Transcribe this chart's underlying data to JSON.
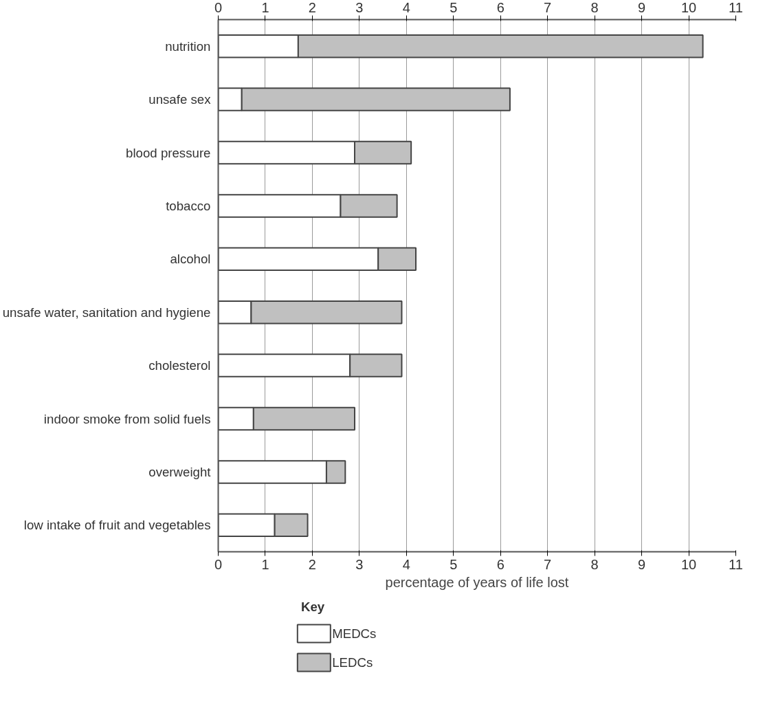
{
  "chart_data": {
    "type": "bar",
    "orientation": "horizontal",
    "stacked": true,
    "categories": [
      "nutrition",
      "unsafe sex",
      "blood pressure",
      "tobacco",
      "alcohol",
      "unsafe water, sanitation and hygiene",
      "cholesterol",
      "indoor smoke from solid fuels",
      "overweight",
      "low intake of fruit and vegetables"
    ],
    "series": [
      {
        "name": "MEDCs",
        "color": "#ffffff",
        "values": [
          1.7,
          0.5,
          2.9,
          2.6,
          3.4,
          0.7,
          2.8,
          0.75,
          2.3,
          1.2
        ]
      },
      {
        "name": "LEDCs",
        "color": "#c0c0c0",
        "values": [
          8.6,
          5.7,
          1.2,
          1.2,
          0.8,
          3.2,
          1.1,
          2.15,
          0.4,
          0.7
        ]
      }
    ],
    "xlabel": "percentage of years of life lost",
    "legend_title": "Key",
    "legend": "bottom left",
    "xlim": [
      0,
      11
    ],
    "xticks": [
      0,
      1,
      2,
      3,
      4,
      5,
      6,
      7,
      8,
      9,
      10,
      11
    ],
    "x2lim": [
      0,
      11
    ],
    "x2ticks": [
      0,
      1,
      2,
      3,
      4,
      5,
      6,
      7,
      8,
      9,
      10,
      11
    ],
    "grid": "x"
  }
}
